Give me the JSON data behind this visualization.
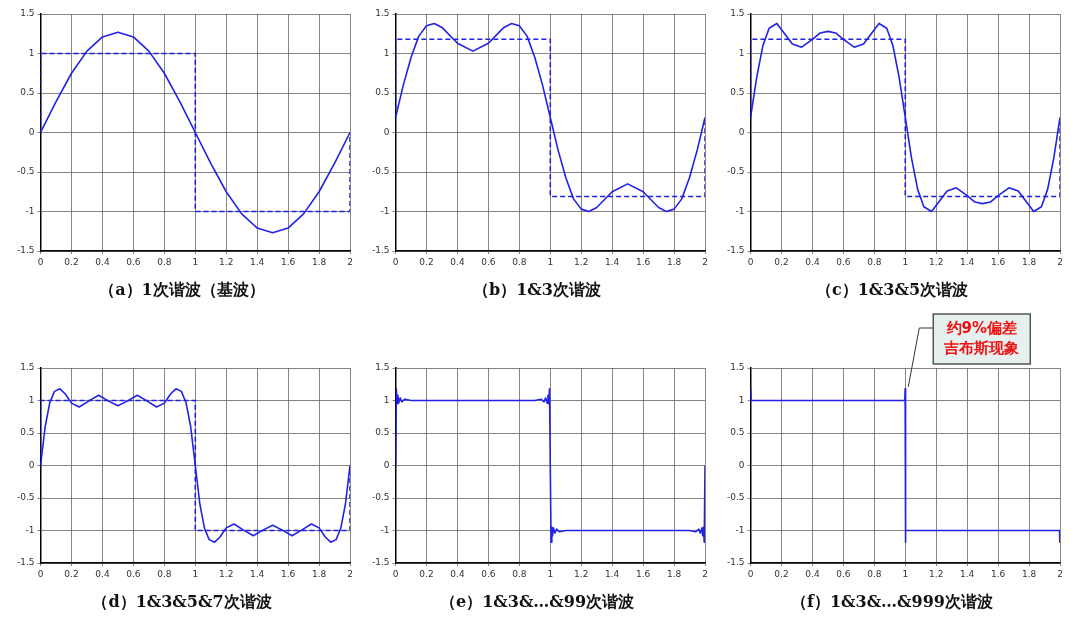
{
  "chart_data": [
    {
      "type": "line",
      "title": "（a）1次谐波（基波）",
      "xlim": [
        0,
        2
      ],
      "ylim": [
        -1.5,
        1.5
      ],
      "xticks": [
        0,
        0.2,
        0.4,
        0.6,
        0.8,
        1,
        1.2,
        1.4,
        1.6,
        1.8,
        2
      ],
      "yticks": [
        -1.5,
        -1,
        -0.5,
        0,
        0.5,
        1,
        1.5
      ],
      "grid": true,
      "legend": false,
      "marker": "none",
      "series": [
        {
          "color": "#2222e6",
          "line_style": "dashed",
          "x": [
            0,
            0,
            1,
            1,
            2,
            2
          ],
          "values": [
            0,
            1,
            1,
            -1,
            -1,
            0
          ]
        },
        {
          "color": "#2222e6",
          "line_style": "solid",
          "x": [
            0,
            0.1,
            0.2,
            0.3,
            0.4,
            0.5,
            0.6,
            0.7,
            0.8,
            0.9,
            1,
            1.1,
            1.2,
            1.3,
            1.4,
            1.5,
            1.6,
            1.7,
            1.8,
            1.9,
            2
          ],
          "values": [
            0,
            0.39,
            0.75,
            1.03,
            1.21,
            1.27,
            1.21,
            1.03,
            0.75,
            0.39,
            0,
            -0.39,
            -0.75,
            -1.03,
            -1.21,
            -1.27,
            -1.21,
            -1.03,
            -0.75,
            -0.39,
            0
          ]
        }
      ]
    },
    {
      "type": "line",
      "title": "（b）1&3次谐波",
      "xlim": [
        0,
        2
      ],
      "ylim": [
        -1.5,
        1.5
      ],
      "xticks": [
        0,
        0.2,
        0.4,
        0.6,
        0.8,
        1,
        1.2,
        1.4,
        1.6,
        1.8,
        2
      ],
      "yticks": [
        -1.5,
        -1,
        -0.5,
        0,
        0.5,
        1,
        1.5
      ],
      "grid": true,
      "legend": false,
      "marker": "none",
      "series": [
        {
          "color": "#2222e6",
          "line_style": "dashed",
          "x": [
            0,
            0,
            1,
            1,
            2,
            2
          ],
          "values": [
            0.19,
            1.18,
            1.18,
            -0.81,
            -0.81,
            0.19
          ]
        },
        {
          "color": "#2222e6",
          "line_style": "solid",
          "x": [
            0,
            0.05,
            0.1,
            0.15,
            0.2,
            0.25,
            0.3,
            0.4,
            0.5,
            0.6,
            0.7,
            0.75,
            0.8,
            0.85,
            0.9,
            0.95,
            1,
            1.05,
            1.1,
            1.15,
            1.2,
            1.25,
            1.3,
            1.4,
            1.5,
            1.6,
            1.7,
            1.75,
            1.8,
            1.85,
            1.9,
            1.95,
            2
          ],
          "values": [
            0.19,
            0.6,
            0.95,
            1.22,
            1.35,
            1.38,
            1.33,
            1.13,
            1.03,
            1.13,
            1.33,
            1.38,
            1.35,
            1.22,
            0.95,
            0.6,
            0.19,
            -0.22,
            -0.57,
            -0.84,
            -0.97,
            -1.0,
            -0.95,
            -0.75,
            -0.65,
            -0.75,
            -0.95,
            -1.0,
            -0.97,
            -0.84,
            -0.57,
            -0.22,
            0.19
          ]
        }
      ]
    },
    {
      "type": "line",
      "title": "（c）1&3&5次谐波",
      "xlim": [
        0,
        2
      ],
      "ylim": [
        -1.5,
        1.5
      ],
      "xticks": [
        0,
        0.2,
        0.4,
        0.6,
        0.8,
        1,
        1.2,
        1.4,
        1.6,
        1.8,
        2
      ],
      "yticks": [
        -1.5,
        -1,
        -0.5,
        0,
        0.5,
        1,
        1.5
      ],
      "grid": true,
      "legend": false,
      "marker": "none",
      "series": [
        {
          "color": "#2222e6",
          "line_style": "dashed",
          "x": [
            0,
            0,
            1,
            1,
            2,
            2
          ],
          "values": [
            0.19,
            1.18,
            1.18,
            -0.81,
            -0.81,
            0.19
          ]
        },
        {
          "color": "#2222e6",
          "line_style": "solid",
          "x": [
            0,
            0.04,
            0.08,
            0.12,
            0.17,
            0.22,
            0.27,
            0.33,
            0.4,
            0.45,
            0.5,
            0.55,
            0.6,
            0.67,
            0.73,
            0.78,
            0.83,
            0.88,
            0.92,
            0.96,
            1,
            1.04,
            1.08,
            1.12,
            1.17,
            1.22,
            1.27,
            1.33,
            1.4,
            1.45,
            1.5,
            1.55,
            1.6,
            1.67,
            1.73,
            1.78,
            1.83,
            1.88,
            1.92,
            1.96,
            2
          ],
          "values": [
            0.19,
            0.7,
            1.1,
            1.32,
            1.38,
            1.25,
            1.12,
            1.08,
            1.18,
            1.26,
            1.28,
            1.26,
            1.18,
            1.08,
            1.12,
            1.25,
            1.38,
            1.32,
            1.1,
            0.7,
            0.19,
            -0.32,
            -0.72,
            -0.94,
            -1.0,
            -0.87,
            -0.74,
            -0.7,
            -0.8,
            -0.88,
            -0.9,
            -0.88,
            -0.8,
            -0.7,
            -0.74,
            -0.87,
            -1.0,
            -0.94,
            -0.72,
            -0.32,
            0.19
          ]
        }
      ]
    },
    {
      "type": "line",
      "title": "（d）1&3&5&7次谐波",
      "xlim": [
        0,
        2
      ],
      "ylim": [
        -1.5,
        1.5
      ],
      "xticks": [
        0,
        0.2,
        0.4,
        0.6,
        0.8,
        1,
        1.2,
        1.4,
        1.6,
        1.8,
        2
      ],
      "yticks": [
        -1.5,
        -1,
        -0.5,
        0,
        0.5,
        1,
        1.5
      ],
      "grid": true,
      "legend": false,
      "marker": "none",
      "series": [
        {
          "color": "#2222e6",
          "line_style": "dashed",
          "x": [
            0,
            0,
            1,
            1,
            2,
            2
          ],
          "values": [
            0,
            1,
            1,
            -1,
            -1,
            0
          ]
        },
        {
          "color": "#2222e6",
          "line_style": "solid",
          "x": [
            0,
            0.03,
            0.06,
            0.09,
            0.125,
            0.16,
            0.2,
            0.25,
            0.31,
            0.375,
            0.44,
            0.5,
            0.56,
            0.625,
            0.69,
            0.75,
            0.8,
            0.84,
            0.875,
            0.91,
            0.94,
            0.97,
            1,
            1.03,
            1.06,
            1.09,
            1.125,
            1.16,
            1.2,
            1.25,
            1.31,
            1.375,
            1.44,
            1.5,
            1.56,
            1.625,
            1.69,
            1.75,
            1.8,
            1.84,
            1.875,
            1.91,
            1.94,
            1.97,
            2
          ],
          "values": [
            0,
            0.6,
            0.97,
            1.14,
            1.18,
            1.1,
            0.96,
            0.9,
            0.99,
            1.08,
            0.99,
            0.92,
            0.99,
            1.08,
            0.99,
            0.9,
            0.96,
            1.1,
            1.18,
            1.14,
            0.97,
            0.6,
            0,
            -0.6,
            -0.97,
            -1.14,
            -1.18,
            -1.1,
            -0.96,
            -0.9,
            -0.99,
            -1.08,
            -0.99,
            -0.92,
            -0.99,
            -1.08,
            -0.99,
            -0.9,
            -0.96,
            -1.1,
            -1.18,
            -1.14,
            -0.97,
            -0.6,
            0
          ]
        }
      ]
    },
    {
      "type": "line",
      "title": "（e）1&3&…&99次谐波",
      "xlim": [
        0,
        2
      ],
      "ylim": [
        -1.5,
        1.5
      ],
      "xticks": [
        0,
        0.2,
        0.4,
        0.6,
        0.8,
        1,
        1.2,
        1.4,
        1.6,
        1.8,
        2
      ],
      "yticks": [
        -1.5,
        -1,
        -0.5,
        0,
        0.5,
        1,
        1.5
      ],
      "grid": true,
      "legend": false,
      "marker": "none",
      "series": [
        {
          "color": "#2222e6",
          "line_style": "solid",
          "x": [
            0,
            0.005,
            0.01,
            0.015,
            0.02,
            0.03,
            0.04,
            0.06,
            0.1,
            0.9,
            0.94,
            0.96,
            0.97,
            0.98,
            0.985,
            0.99,
            0.995,
            1,
            1.005,
            1.01,
            1.015,
            1.02,
            1.03,
            1.04,
            1.06,
            1.1,
            1.9,
            1.94,
            1.96,
            1.97,
            1.98,
            1.985,
            1.99,
            1.995,
            2
          ],
          "values": [
            0,
            1.18,
            0.95,
            1.08,
            0.96,
            1.04,
            0.98,
            1.02,
            1.0,
            1.0,
            1.02,
            0.98,
            1.04,
            0.96,
            1.08,
            0.95,
            1.18,
            0,
            -1.18,
            -0.95,
            -1.08,
            -0.96,
            -1.04,
            -0.98,
            -1.02,
            -1.0,
            -1.0,
            -1.02,
            -0.98,
            -1.04,
            -0.96,
            -1.08,
            -0.95,
            -1.18,
            0
          ]
        }
      ]
    },
    {
      "type": "line",
      "title": "（f）1&3&…&999次谐波",
      "xlim": [
        0,
        2
      ],
      "ylim": [
        -1.5,
        1.5
      ],
      "xticks": [
        0,
        0.2,
        0.4,
        0.6,
        0.8,
        1,
        1.2,
        1.4,
        1.6,
        1.8,
        2
      ],
      "yticks": [
        -1.5,
        -1,
        -0.5,
        0,
        0.5,
        1,
        1.5
      ],
      "grid": true,
      "legend": false,
      "marker": "none",
      "annotations": [
        {
          "text": "约9%偏差吉布斯现象",
          "x": 1,
          "y": 1.18
        }
      ],
      "series": [
        {
          "color": "#2222e6",
          "line_style": "solid",
          "x": [
            0.001,
            0.003,
            0.997,
            0.999,
            1.001,
            1.003,
            1.997,
            1.999
          ],
          "values": [
            1.18,
            1.0,
            1.0,
            1.18,
            -1.18,
            -1.0,
            -1.0,
            -1.18
          ]
        }
      ]
    }
  ]
}
